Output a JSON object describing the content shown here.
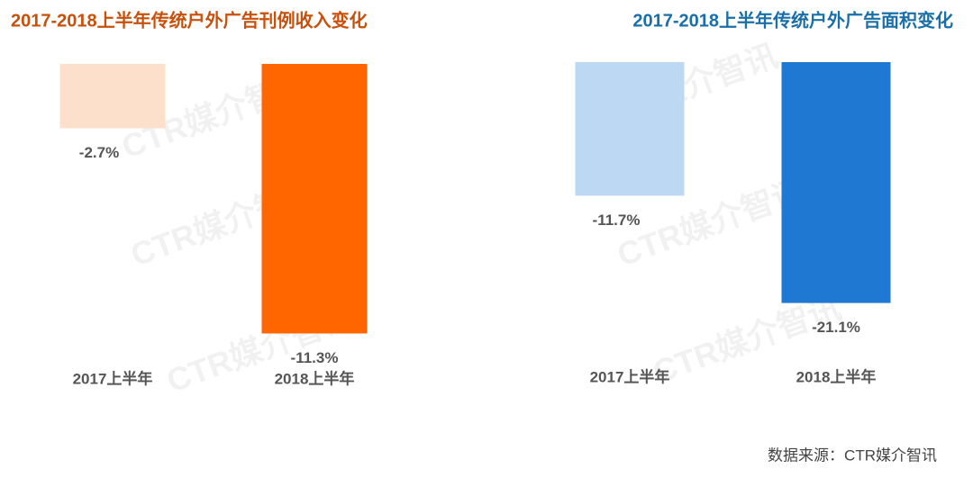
{
  "chart_data": [
    {
      "type": "bar",
      "title": "2017-2018上半年传统户外广告刊例收入变化",
      "title_color": "#c8500a",
      "categories": [
        "2017上半年",
        "2018上半年"
      ],
      "values": [
        -2.7,
        -11.3
      ],
      "value_labels": [
        "-2.7%",
        "-11.3%"
      ],
      "colors": [
        "#fde0cc",
        "#ff6600"
      ],
      "ylim": [
        -12,
        0
      ]
    },
    {
      "type": "bar",
      "title": "2017-2018上半年传统户外广告面积变化",
      "title_color": "#1a6fa8",
      "categories": [
        "2017上半年",
        "2018上半年"
      ],
      "values": [
        -11.7,
        -21.1
      ],
      "value_labels": [
        "-11.7%",
        "-21.1%"
      ],
      "colors": [
        "#bcd8f2",
        "#1f78d1"
      ],
      "ylim": [
        -22,
        0
      ]
    }
  ],
  "source": "数据来源：CTR媒介智讯",
  "watermark": "CTR媒介智讯"
}
